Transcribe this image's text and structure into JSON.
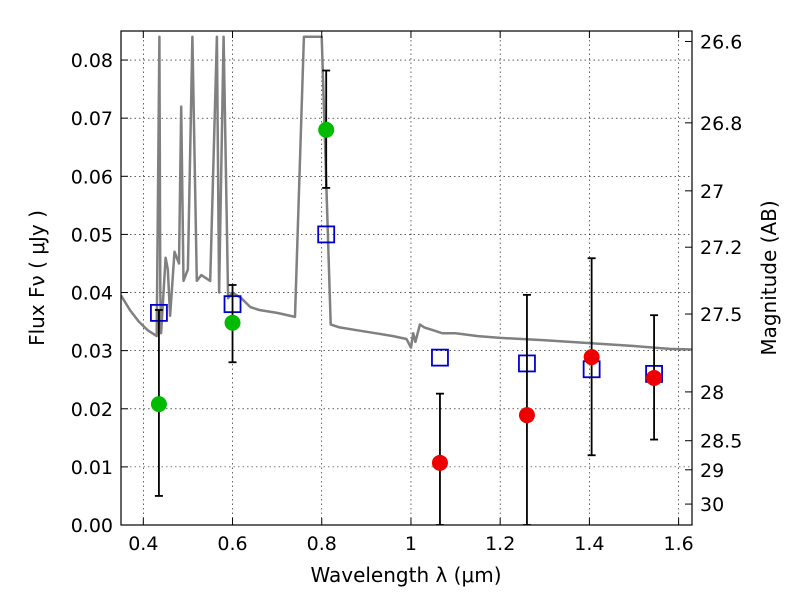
{
  "chart_data": {
    "type": "scatter",
    "xlabel": "Wavelength  λ (μm)",
    "ylabel": "Flux  Fν  ( μJy )",
    "ylabel_right": "Magnitude (AB)",
    "xlim": [
      0.35,
      1.63
    ],
    "ylim": [
      0.0,
      0.085
    ],
    "grid": true,
    "x_ticks": [
      0.4,
      0.6,
      0.8,
      1.0,
      1.2,
      1.4,
      1.6
    ],
    "x_tick_labels": [
      "0.4",
      "0.6",
      "0.8",
      "1",
      "1.2",
      "1.4",
      "1.6"
    ],
    "y_ticks": [
      0.0,
      0.01,
      0.02,
      0.03,
      0.04,
      0.05,
      0.06,
      0.07,
      0.08
    ],
    "y_tick_labels": [
      "0.00",
      "0.01",
      "0.02",
      "0.03",
      "0.04",
      "0.05",
      "0.06",
      "0.07",
      "0.08"
    ],
    "right_ticks": [
      {
        "label": "26.6",
        "flux": 0.0832
      },
      {
        "label": "26.8",
        "flux": 0.0692
      },
      {
        "label": "27",
        "flux": 0.0575
      },
      {
        "label": "27.2",
        "flux": 0.0478
      },
      {
        "label": "27.5",
        "flux": 0.0363
      },
      {
        "label": "28",
        "flux": 0.0229
      },
      {
        "label": "28.5",
        "flux": 0.0145
      },
      {
        "label": "29",
        "flux": 0.0095
      },
      {
        "label": "30",
        "flux": 0.0036
      }
    ],
    "series": [
      {
        "kind": "line",
        "color": "#808080",
        "x": [
          0.35,
          0.37,
          0.39,
          0.41,
          0.43,
          0.436,
          0.438,
          0.44,
          0.45,
          0.455,
          0.46,
          0.47,
          0.48,
          0.485,
          0.49,
          0.5,
          0.51,
          0.52,
          0.53,
          0.55,
          0.565,
          0.57,
          0.58,
          0.59,
          0.6,
          0.62,
          0.64,
          0.66,
          0.7,
          0.74,
          0.76,
          0.8,
          0.82,
          0.84,
          0.88,
          0.92,
          0.96,
          0.99,
          1.0,
          1.005,
          1.01,
          1.02,
          1.03,
          1.05,
          1.07,
          1.1,
          1.15,
          1.2,
          1.3,
          1.4,
          1.5,
          1.58,
          1.63
        ],
        "y": [
          0.0395,
          0.037,
          0.035,
          0.0335,
          0.0325,
          0.084,
          0.04,
          0.033,
          0.046,
          0.044,
          0.036,
          0.047,
          0.045,
          0.072,
          0.042,
          0.044,
          0.084,
          0.042,
          0.043,
          0.042,
          0.084,
          0.04,
          0.084,
          0.039,
          0.04,
          0.039,
          0.0375,
          0.037,
          0.0365,
          0.0358,
          0.084,
          0.084,
          0.0345,
          0.034,
          0.0335,
          0.033,
          0.0325,
          0.032,
          0.0305,
          0.033,
          0.0315,
          0.0345,
          0.034,
          0.0335,
          0.033,
          0.033,
          0.0325,
          0.0322,
          0.0318,
          0.0313,
          0.0308,
          0.0303,
          0.0302
        ]
      },
      {
        "kind": "points",
        "marker": "square",
        "color": "#0000cc",
        "x": [
          0.435,
          0.6,
          0.81,
          1.065,
          1.26,
          1.405,
          1.545
        ],
        "y": [
          0.0365,
          0.038,
          0.05,
          0.0288,
          0.0278,
          0.0268,
          0.026
        ]
      },
      {
        "kind": "points",
        "marker": "circle",
        "color": "#00bb00",
        "x": [
          0.435,
          0.6,
          0.81
        ],
        "y": [
          0.0208,
          0.0348,
          0.068
        ],
        "yerr_low": [
          0.005,
          0.028,
          0.058
        ],
        "yerr_high": [
          0.037,
          0.0413,
          0.0782
        ]
      },
      {
        "kind": "points",
        "marker": "circle",
        "color": "#ee0000",
        "x": [
          1.065,
          1.26,
          1.405,
          1.545
        ],
        "y": [
          0.0107,
          0.0189,
          0.0289,
          0.0253
        ],
        "yerr_low": [
          0.0,
          0.0,
          0.012,
          0.0147
        ],
        "yerr_high": [
          0.0226,
          0.0396,
          0.0459,
          0.0361
        ]
      }
    ]
  }
}
